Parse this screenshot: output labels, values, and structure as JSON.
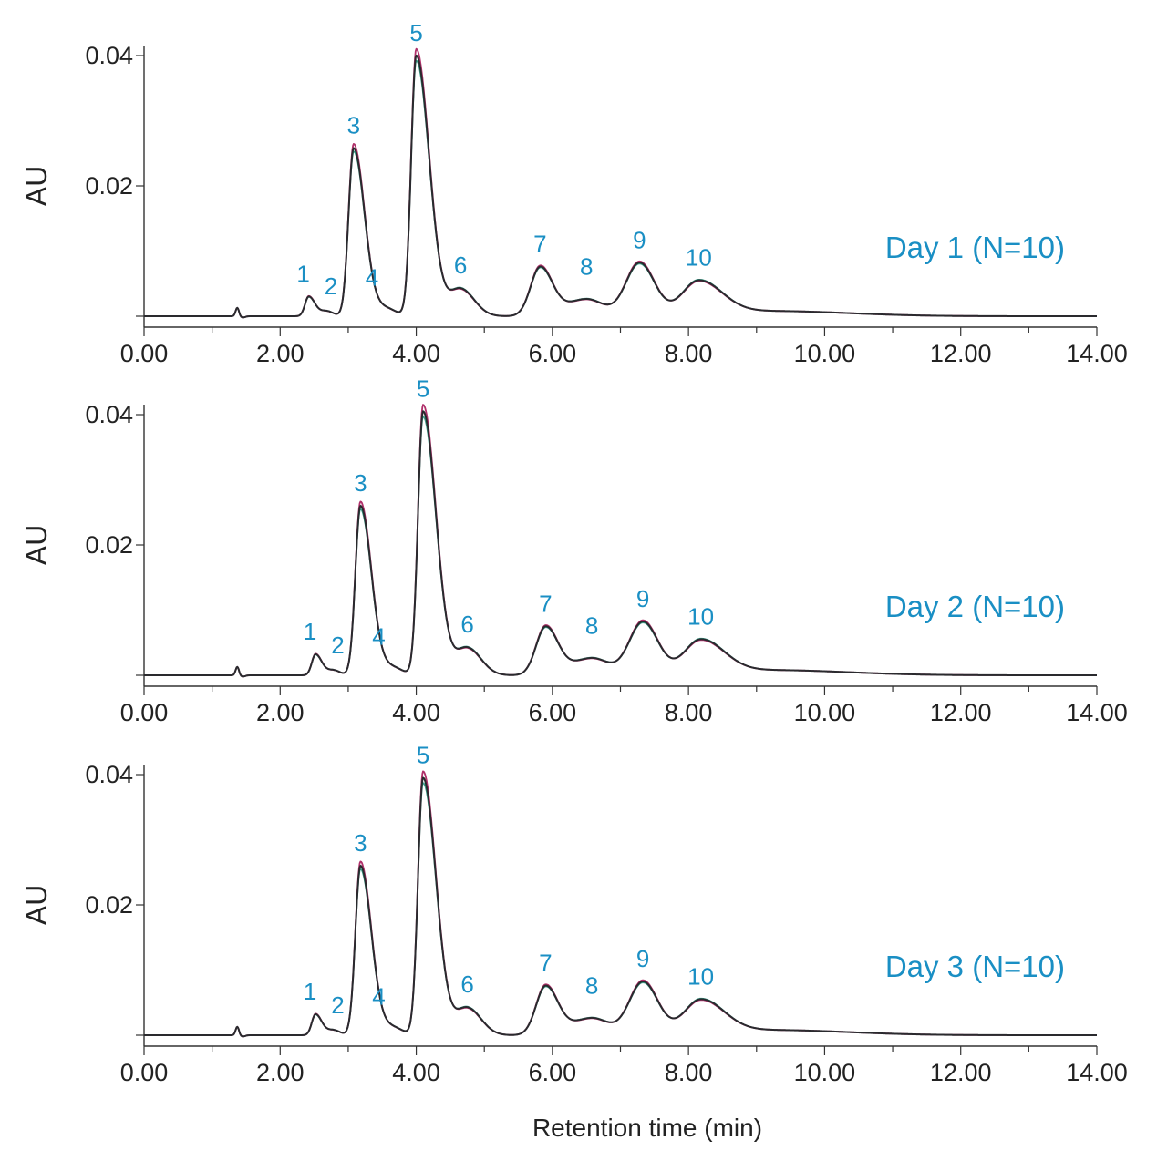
{
  "colors": {
    "accent": "#1a8fc4",
    "trace_main": "#2a2a2e",
    "trace_overlay_1": "#b0306a",
    "trace_overlay_2": "#3aa08a",
    "axis": "#333333"
  },
  "chart_data": [
    {
      "type": "line",
      "panel_label": "Day 1 (N=10)",
      "ylabel": "AU",
      "xlabel": "",
      "xlim": [
        0,
        14
      ],
      "ylim": [
        -0.0015,
        0.042
      ],
      "x_ticks": [
        "0.00",
        "2.00",
        "4.00",
        "6.00",
        "8.00",
        "10.00",
        "12.00",
        "14.00"
      ],
      "y_ticks": [
        "0.02",
        "0.04"
      ],
      "peaks": [
        {
          "label": "1",
          "rt": 2.42,
          "height": 0.003
        },
        {
          "label": "2",
          "rt": 2.68,
          "height": 0.0008
        },
        {
          "label": "3",
          "rt": 3.08,
          "height": 0.0258
        },
        {
          "label": "4",
          "rt": 3.55,
          "height": 0.0012
        },
        {
          "label": "5",
          "rt": 4.0,
          "height": 0.04
        },
        {
          "label": "6",
          "rt": 4.65,
          "height": 0.0042
        },
        {
          "label": "7",
          "rt": 5.82,
          "height": 0.0074
        },
        {
          "label": "8",
          "rt": 6.5,
          "height": 0.0026
        },
        {
          "label": "9",
          "rt": 7.28,
          "height": 0.008
        },
        {
          "label": "10",
          "rt": 8.15,
          "height": 0.005
        }
      ]
    },
    {
      "type": "line",
      "panel_label": "Day 2 (N=10)",
      "ylabel": "AU",
      "xlabel": "",
      "xlim": [
        0,
        14
      ],
      "ylim": [
        -0.0015,
        0.042
      ],
      "x_ticks": [
        "0.00",
        "2.00",
        "4.00",
        "6.00",
        "8.00",
        "10.00",
        "12.00",
        "14.00"
      ],
      "y_ticks": [
        "0.02",
        "0.04"
      ],
      "peaks": [
        {
          "label": "1",
          "rt": 2.52,
          "height": 0.0032
        },
        {
          "label": "2",
          "rt": 2.78,
          "height": 0.0008
        },
        {
          "label": "3",
          "rt": 3.18,
          "height": 0.026
        },
        {
          "label": "4",
          "rt": 3.65,
          "height": 0.0012
        },
        {
          "label": "5",
          "rt": 4.1,
          "height": 0.0405
        },
        {
          "label": "6",
          "rt": 4.75,
          "height": 0.0042
        },
        {
          "label": "7",
          "rt": 5.9,
          "height": 0.0073
        },
        {
          "label": "8",
          "rt": 6.58,
          "height": 0.0026
        },
        {
          "label": "9",
          "rt": 7.33,
          "height": 0.008
        },
        {
          "label": "10",
          "rt": 8.18,
          "height": 0.005
        }
      ]
    },
    {
      "type": "line",
      "panel_label": "Day 3 (N=10)",
      "ylabel": "AU",
      "xlabel": "Retention time (min)",
      "xlim": [
        0,
        14
      ],
      "ylim": [
        -0.0015,
        0.042
      ],
      "x_ticks": [
        "0.00",
        "2.00",
        "4.00",
        "6.00",
        "8.00",
        "10.00",
        "12.00",
        "14.00"
      ],
      "y_ticks": [
        "0.02",
        "0.04"
      ],
      "peaks": [
        {
          "label": "1",
          "rt": 2.52,
          "height": 0.0032
        },
        {
          "label": "2",
          "rt": 2.78,
          "height": 0.0008
        },
        {
          "label": "3",
          "rt": 3.18,
          "height": 0.026
        },
        {
          "label": "4",
          "rt": 3.65,
          "height": 0.0012
        },
        {
          "label": "5",
          "rt": 4.1,
          "height": 0.0395
        },
        {
          "label": "6",
          "rt": 4.75,
          "height": 0.0042
        },
        {
          "label": "7",
          "rt": 5.9,
          "height": 0.0074
        },
        {
          "label": "8",
          "rt": 6.58,
          "height": 0.0026
        },
        {
          "label": "9",
          "rt": 7.33,
          "height": 0.008
        },
        {
          "label": "10",
          "rt": 8.18,
          "height": 0.005
        }
      ]
    }
  ]
}
